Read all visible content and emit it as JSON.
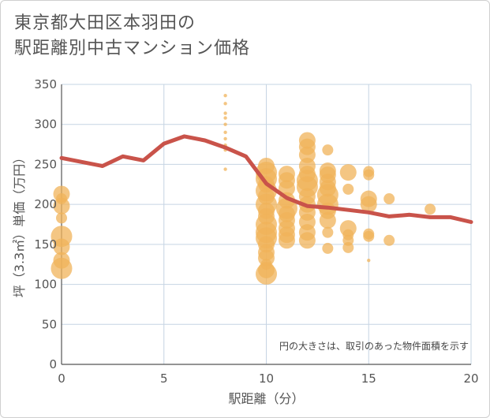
{
  "title_lines": [
    "東京都大田区本羽田の",
    "駅距離別中古マンション価格"
  ],
  "chart_data": {
    "type": "scatter",
    "title": "東京都大田区本羽田の駅距離別中古マンション価格",
    "xlabel": "駅距離（分）",
    "ylabel": "坪（3.3㎡）単価（万円）",
    "xlim": [
      0,
      20
    ],
    "ylim": [
      0,
      350
    ],
    "xticks": [
      0,
      5,
      10,
      15,
      20
    ],
    "yticks": [
      0,
      50,
      100,
      150,
      200,
      250,
      300,
      350
    ],
    "grid": true,
    "note": "円の大きさは、取引のあった物件面積を示す",
    "colors": {
      "bubble": "#f0b35a",
      "line": "#c9534a",
      "grid": "#c6d4e3"
    },
    "series": [
      {
        "type": "line",
        "x": [
          0,
          1,
          2,
          3,
          4,
          5,
          6,
          7,
          8,
          9,
          10,
          11,
          12,
          13,
          14,
          15,
          16,
          17,
          18,
          19,
          20
        ],
        "y": [
          258,
          253,
          248,
          260,
          255,
          276,
          285,
          280,
          271,
          260,
          226,
          208,
          198,
          196,
          193,
          190,
          185,
          187,
          184,
          184,
          178
        ]
      },
      {
        "type": "bubble",
        "x": [
          0,
          0,
          0,
          0,
          0,
          0,
          0,
          0,
          8,
          8,
          8,
          8,
          8,
          8,
          8,
          8,
          8,
          8,
          10,
          10,
          10,
          10,
          10,
          10,
          10,
          10,
          10,
          10,
          10,
          10,
          10,
          10,
          10,
          10,
          10,
          10,
          11,
          11,
          11,
          11,
          11,
          11,
          11,
          11,
          11,
          11,
          12,
          12,
          12,
          12,
          12,
          12,
          12,
          12,
          12,
          12,
          12,
          12,
          12,
          13,
          13,
          13,
          13,
          13,
          13,
          13,
          13,
          13,
          13,
          13,
          14,
          14,
          14,
          14,
          14,
          14,
          15,
          15,
          15,
          15,
          15,
          15,
          15,
          16,
          16,
          18
        ],
        "y": [
          213,
          207,
          198,
          183,
          160,
          147,
          130,
          120,
          336,
          326,
          314,
          308,
          300,
          290,
          282,
          274,
          268,
          244,
          248,
          240,
          232,
          225,
          217,
          210,
          200,
          192,
          185,
          175,
          165,
          158,
          150,
          140,
          133,
          125,
          118,
          113,
          238,
          230,
          220,
          205,
          195,
          188,
          180,
          170,
          162,
          155,
          280,
          272,
          262,
          248,
          238,
          230,
          222,
          210,
          200,
          190,
          178,
          165,
          155,
          268,
          242,
          237,
          228,
          220,
          212,
          200,
          192,
          180,
          165,
          145,
          240,
          219,
          170,
          162,
          155,
          146,
          241,
          237,
          207,
          200,
          163,
          160,
          130,
          207,
          155,
          194
        ],
        "size": [
          3,
          2,
          3,
          2,
          4,
          3,
          3,
          4,
          1,
          1,
          1,
          1,
          1,
          1,
          1,
          1,
          1,
          1,
          3,
          4,
          4,
          3,
          4,
          3,
          4,
          3,
          3,
          4,
          4,
          4,
          3,
          3,
          3,
          2,
          3,
          4,
          3,
          3,
          3,
          3,
          4,
          3,
          3,
          3,
          3,
          3,
          3,
          3,
          3,
          3,
          3,
          4,
          4,
          3,
          3,
          3,
          3,
          3,
          3,
          2,
          3,
          3,
          3,
          3,
          4,
          4,
          3,
          3,
          2,
          2,
          3,
          2,
          3,
          2,
          2,
          2,
          2,
          2,
          3,
          3,
          2,
          2,
          1,
          2,
          2,
          2
        ]
      }
    ]
  }
}
